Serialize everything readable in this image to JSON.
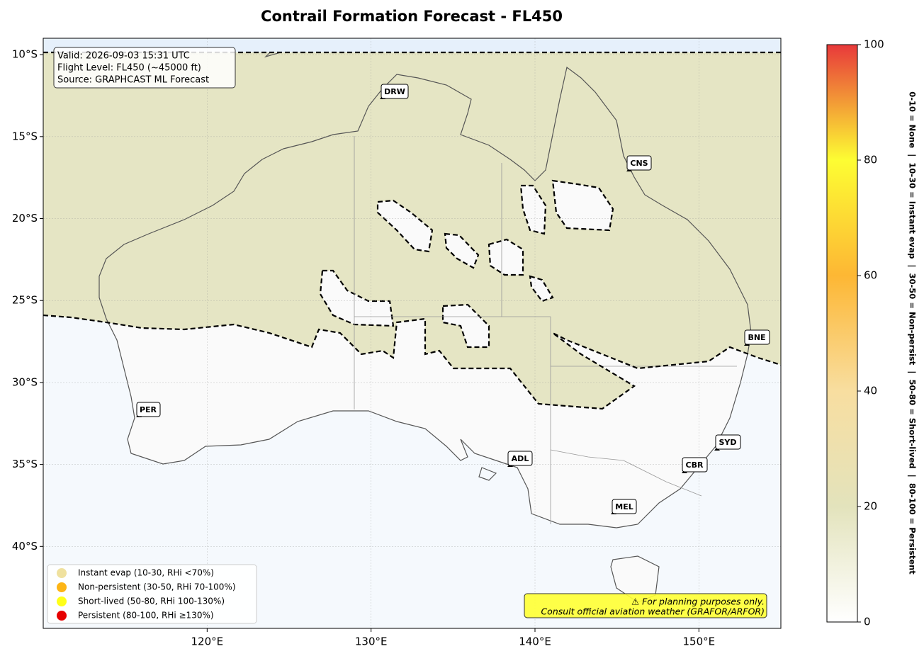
{
  "title": "Contrail Formation Forecast - FL450",
  "map": {
    "xlim": [
      110,
      155
    ],
    "ylim": [
      -45,
      -9
    ],
    "xticks": [
      {
        "value": 120,
        "label": "120°E"
      },
      {
        "value": 130,
        "label": "130°E"
      },
      {
        "value": 140,
        "label": "140°E"
      },
      {
        "value": 150,
        "label": "150°E"
      }
    ],
    "yticks": [
      {
        "value": -10,
        "label": "10°S"
      },
      {
        "value": -15,
        "label": "15°S"
      },
      {
        "value": -20,
        "label": "20°S"
      },
      {
        "value": -25,
        "label": "25°S"
      },
      {
        "value": -30,
        "label": "30°S"
      },
      {
        "value": -35,
        "label": "35°S"
      },
      {
        "value": -40,
        "label": "40°S"
      }
    ],
    "grid": true
  },
  "info": [
    "Valid: 2026-09-03 15:31 UTC",
    "Flight Level: FL450 (~45000 ft)",
    "Source: GRAPHCAST ML Forecast"
  ],
  "cities": [
    "DRW",
    "CNS",
    "BNE",
    "PER",
    "ADL",
    "SYD",
    "CBR",
    "MEL"
  ],
  "legend": [
    {
      "label": "Instant evap (10-30, RHi <70%)",
      "color": "#efe19e"
    },
    {
      "label": "Non-persistent (30-50, RHi 70-100%)",
      "color": "#fdb515"
    },
    {
      "label": "Short-lived (50-80, RHi 100-130%)",
      "color": "#ffff19"
    },
    {
      "label": "Persistent (80-100, RHi ≥130%)",
      "color": "#e60000"
    }
  ],
  "disclaimer": [
    "⚠ For planning purposes only.",
    "Consult official aviation weather (GRAFOR/ARFOR)"
  ],
  "colorbar": {
    "lim": [
      0,
      100
    ],
    "ticks": [
      0,
      20,
      40,
      60,
      80,
      100
    ],
    "label": "0-10 = None  |  10-30 = Instant evap  |  30-50 = Non-persist  |  50-80 = Short-lived  |  80-100 = Persistent"
  }
}
